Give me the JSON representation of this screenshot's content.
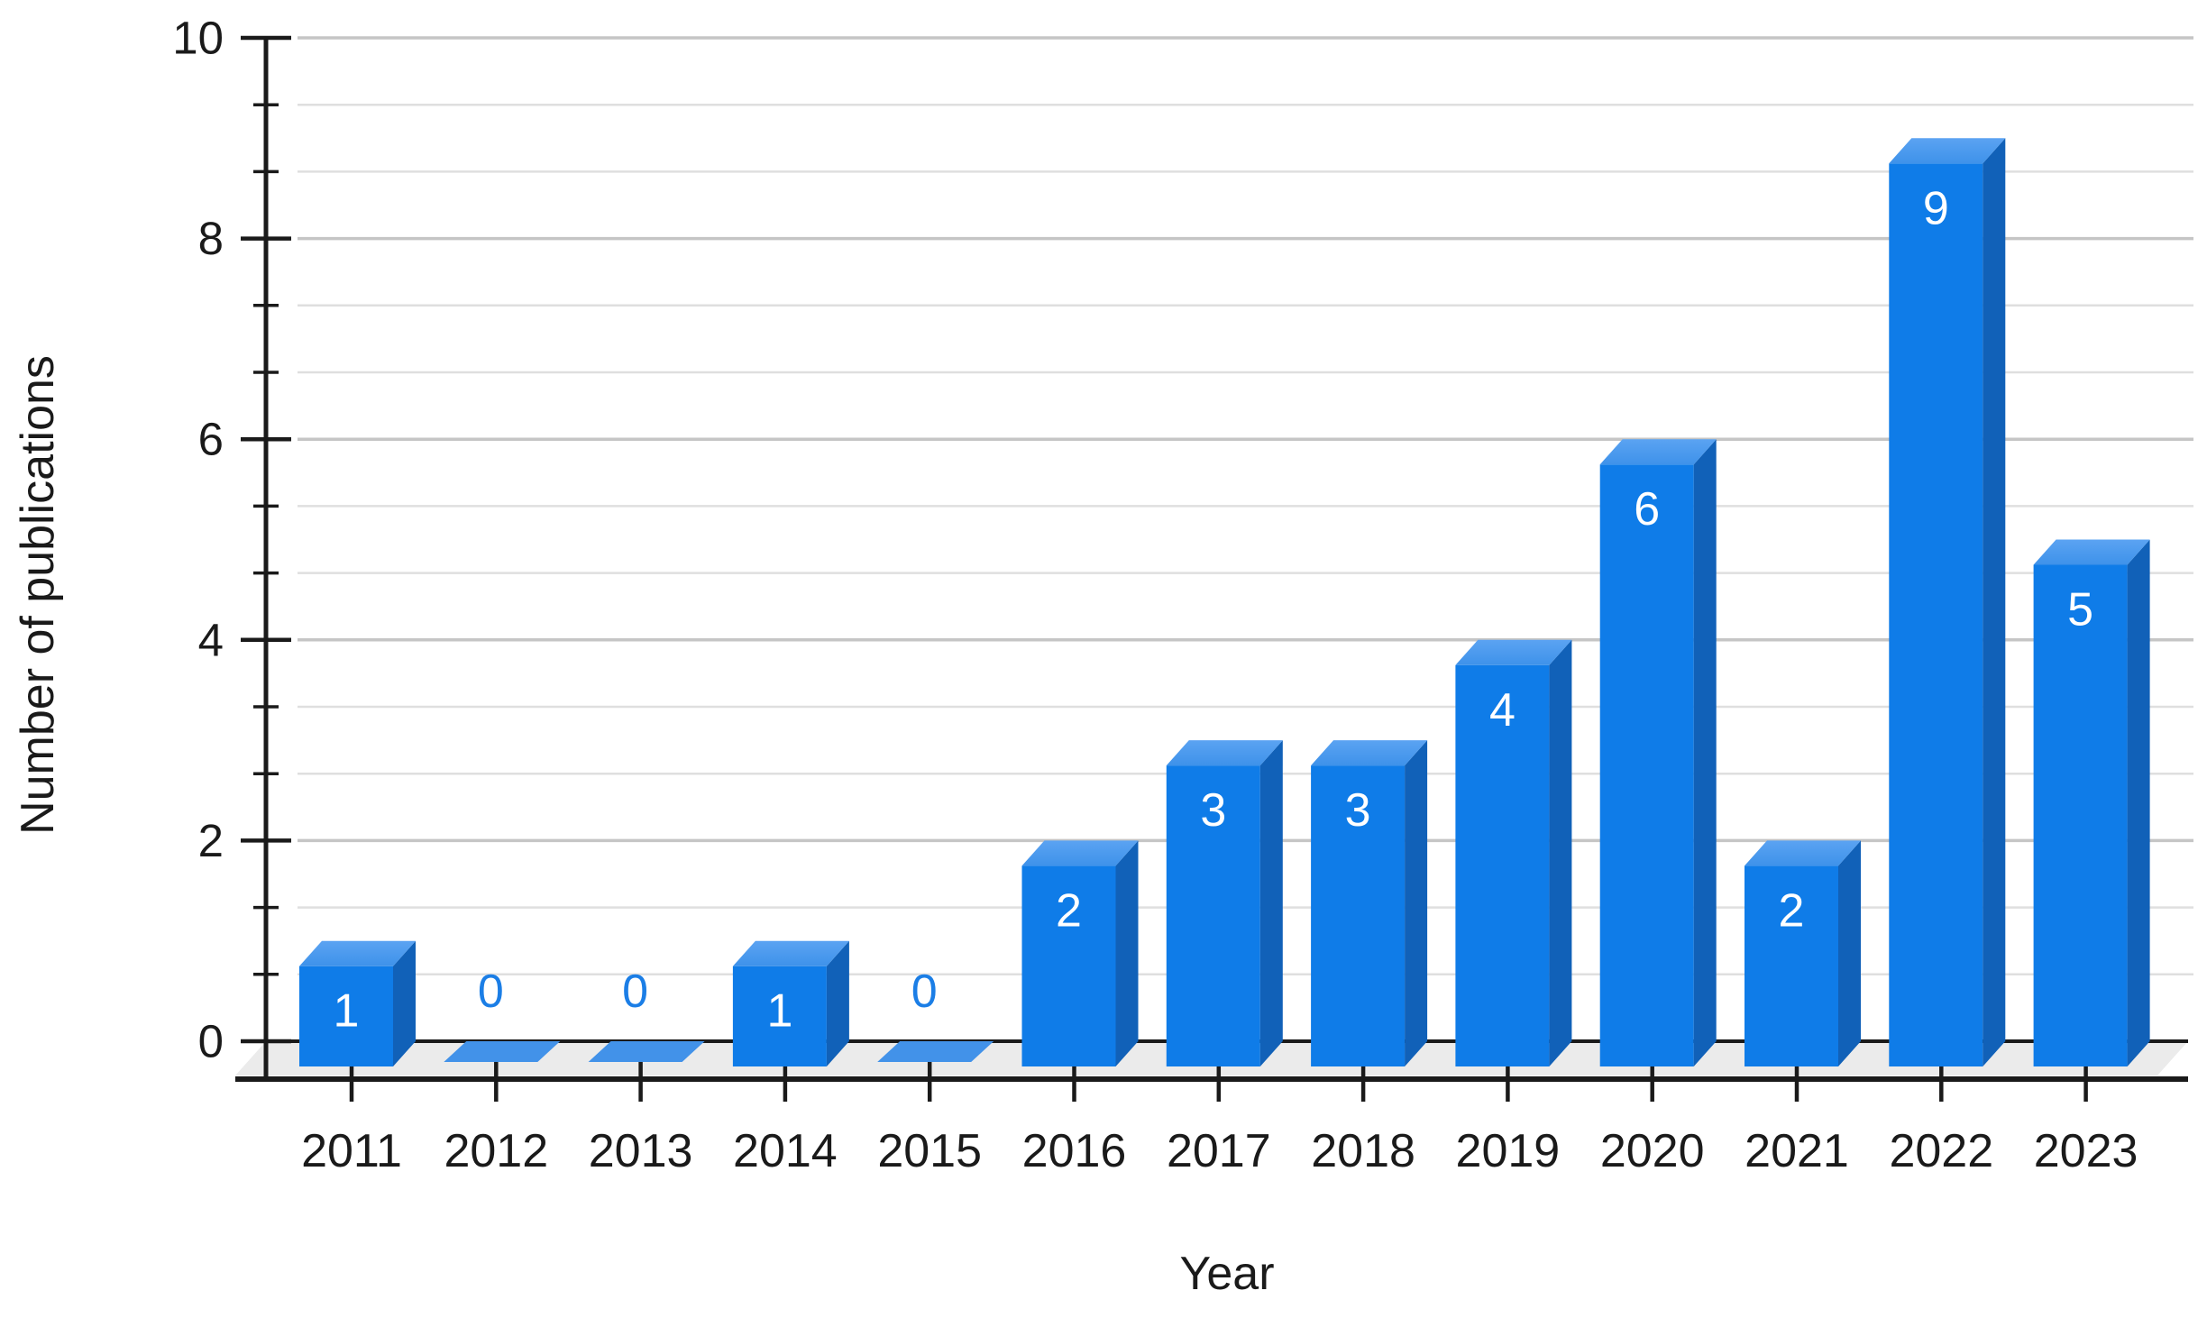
{
  "chart_data": {
    "type": "bar",
    "title": "",
    "xlabel": "Year",
    "ylabel": "Number of publications",
    "categories": [
      "2011",
      "2012",
      "2013",
      "2014",
      "2015",
      "2016",
      "2017",
      "2018",
      "2019",
      "2020",
      "2021",
      "2022",
      "2023"
    ],
    "values": [
      1,
      0,
      0,
      1,
      0,
      2,
      3,
      3,
      4,
      6,
      2,
      9,
      5
    ],
    "value_labels": [
      "1",
      "0",
      "0",
      "1",
      "0",
      "2",
      "3",
      "3",
      "4",
      "6",
      "2",
      "9",
      "5"
    ],
    "ylim": [
      0,
      10
    ],
    "y_major_ticks": [
      0,
      2,
      4,
      6,
      8,
      10
    ],
    "y_major_tick_labels": [
      "0",
      "2",
      "4",
      "6",
      "8",
      "10"
    ],
    "y_minor_intervals_per_major": 3,
    "grid": "horizontal, minor and major lines",
    "legend": "none",
    "style": "3D extruded bars on gray floor plane",
    "colors": {
      "bar_front": "#0F7CE8",
      "bar_top_light": "#5BA3F2",
      "bar_top_dark": "#3E92EA",
      "bar_side": "#1161B8",
      "zero_marker": "#4292E9",
      "zero_label_text": "#1B7EE6",
      "value_label_text": "#FFFFFF",
      "grid_major": "#C5C5C5",
      "grid_minor": "#DFDFDF",
      "axis": "#1A1A1A",
      "floor": "#EBEBEB",
      "text": "#1A1A1A"
    }
  }
}
